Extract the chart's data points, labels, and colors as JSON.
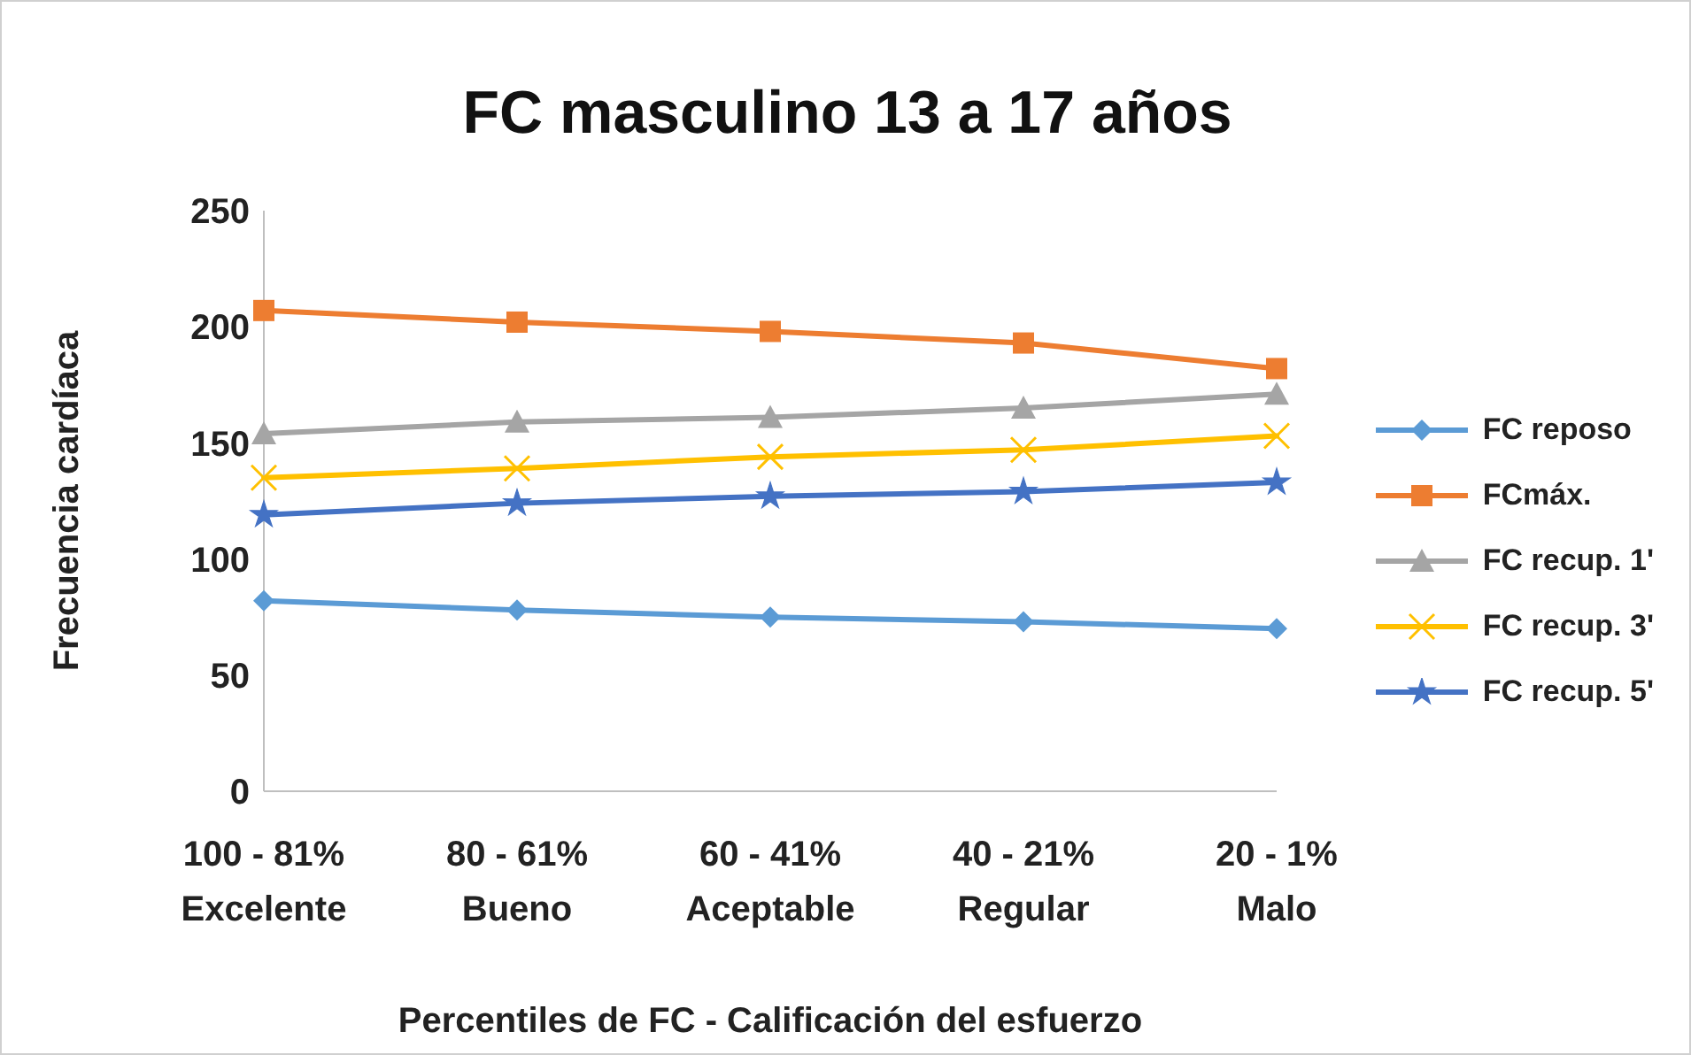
{
  "chart_data": {
    "type": "line",
    "title": "FC masculino 13 a 17 años",
    "xlabel": "Percentiles de FC - Calificación del esfuerzo",
    "ylabel": "Frecuencia cardíaca",
    "categories": [
      "100 - 81%\nExcelente",
      "80 - 61%\nBueno",
      "60 - 41%\nAceptable",
      "40 - 21%\nRegular",
      "20 - 1%\nMalo"
    ],
    "series": [
      {
        "name": "FC reposo",
        "color": "#5b9bd5",
        "marker": "diamond",
        "values": [
          82,
          78,
          75,
          73,
          70
        ]
      },
      {
        "name": "FCmáx.",
        "color": "#ed7d31",
        "marker": "square",
        "values": [
          207,
          202,
          198,
          193,
          182
        ]
      },
      {
        "name": "FC recup. 1'",
        "color": "#a5a5a5",
        "marker": "triangle",
        "values": [
          154,
          159,
          161,
          165,
          171
        ]
      },
      {
        "name": "FC recup. 3'",
        "color": "#ffc000",
        "marker": "cross",
        "values": [
          135,
          139,
          144,
          147,
          153
        ]
      },
      {
        "name": "FC recup. 5'",
        "color": "#4472c4",
        "marker": "star",
        "values": [
          119,
          124,
          127,
          129,
          133
        ]
      }
    ],
    "ylim": [
      0,
      250
    ],
    "yticks": [
      0,
      50,
      100,
      150,
      200,
      250
    ],
    "grid": false,
    "legend": "right"
  }
}
